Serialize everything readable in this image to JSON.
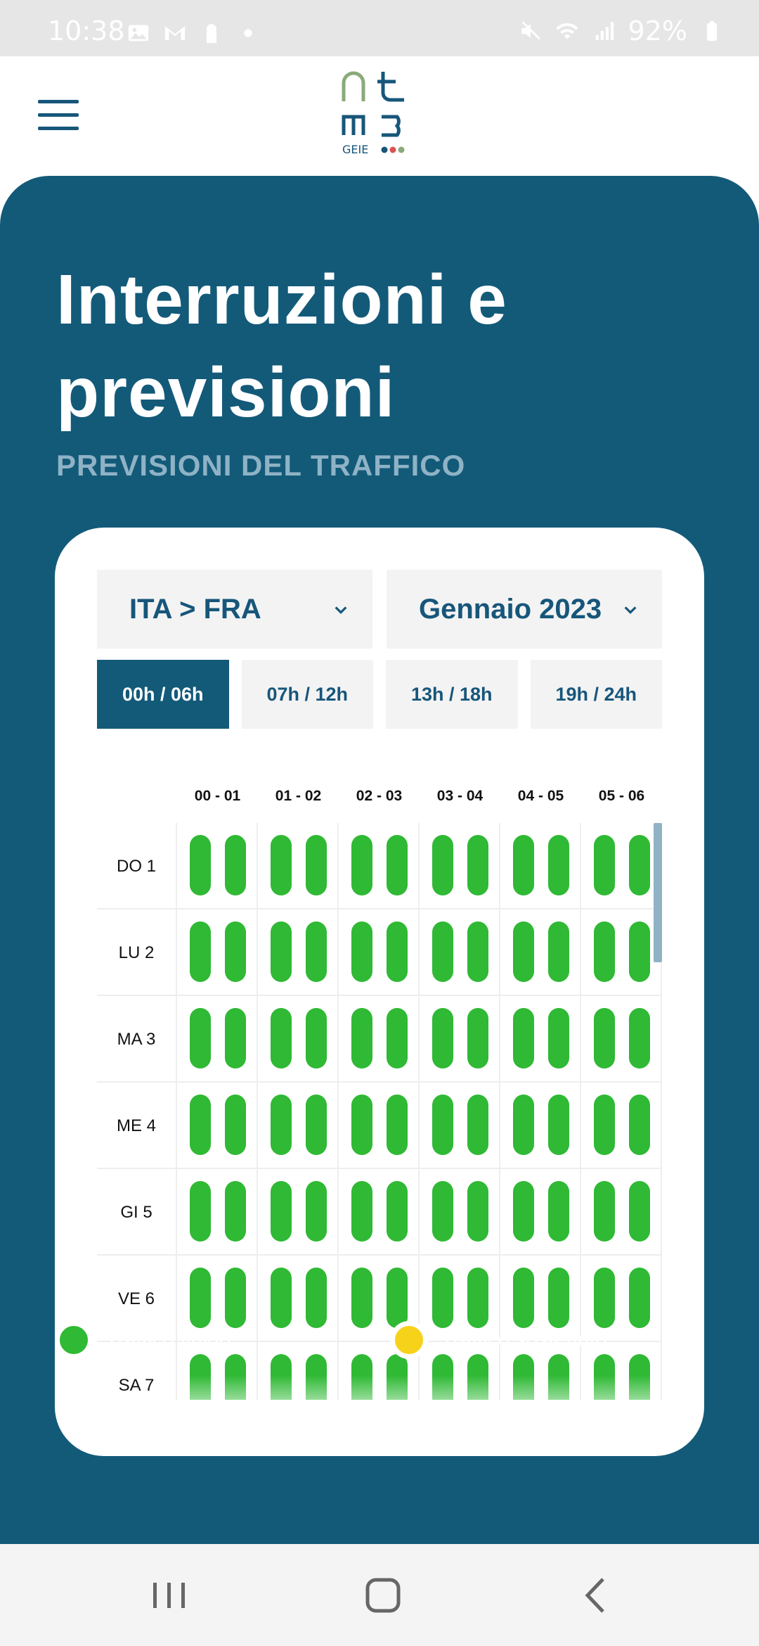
{
  "status_bar": {
    "time": "10:38",
    "battery": "92%",
    "left_icons": [
      "gallery-icon",
      "gmail-icon",
      "keyhole-icon",
      "dot-icon"
    ],
    "right_icons": [
      "mute-icon",
      "wifi-icon",
      "signal-icon",
      "battery-icon"
    ]
  },
  "header": {
    "logo_text": "GEIE",
    "menu_icon": "hamburger-icon"
  },
  "hero": {
    "title_line1": "Interruzioni e",
    "title_line2": "previsioni",
    "subtitle": "PREVISIONI DEL TRAFFICO"
  },
  "filters": {
    "route": "ITA > FRA",
    "month": "Gennaio 2023",
    "dropdown_icon": "chevron-down-icon"
  },
  "tabs": [
    {
      "label": "00h / 06h",
      "active": true
    },
    {
      "label": "07h / 12h",
      "active": false
    },
    {
      "label": "13h / 18h",
      "active": false
    },
    {
      "label": "19h / 24h",
      "active": false
    }
  ],
  "grid": {
    "columns": [
      "00 - 01",
      "01 - 02",
      "02 - 03",
      "03 - 04",
      "04 - 05",
      "05 - 06"
    ],
    "rows": [
      "DO 1",
      "LU 2",
      "MA 3",
      "ME 4",
      "GI 5",
      "VE 6",
      "SA 7"
    ],
    "status_by_row": [
      [
        "fluido",
        "fluido",
        "fluido",
        "fluido",
        "fluido",
        "fluido",
        "fluido",
        "fluido",
        "fluido",
        "fluido",
        "fluido",
        "fluido"
      ],
      [
        "fluido",
        "fluido",
        "fluido",
        "fluido",
        "fluido",
        "fluido",
        "fluido",
        "fluido",
        "fluido",
        "fluido",
        "fluido",
        "fluido"
      ],
      [
        "fluido",
        "fluido",
        "fluido",
        "fluido",
        "fluido",
        "fluido",
        "fluido",
        "fluido",
        "fluido",
        "fluido",
        "fluido",
        "fluido"
      ],
      [
        "fluido",
        "fluido",
        "fluido",
        "fluido",
        "fluido",
        "fluido",
        "fluido",
        "fluido",
        "fluido",
        "fluido",
        "fluido",
        "fluido"
      ],
      [
        "fluido",
        "fluido",
        "fluido",
        "fluido",
        "fluido",
        "fluido",
        "fluido",
        "fluido",
        "fluido",
        "fluido",
        "fluido",
        "fluido"
      ],
      [
        "fluido",
        "fluido",
        "fluido",
        "fluido",
        "fluido",
        "fluido",
        "fluido",
        "fluido",
        "fluido",
        "fluido",
        "fluido",
        "fluido"
      ],
      [
        "fluido",
        "fluido",
        "fluido",
        "fluido",
        "fluido",
        "fluido",
        "fluido",
        "fluido",
        "fluido",
        "fluido",
        "fluido",
        "fluido"
      ]
    ]
  },
  "legend": [
    {
      "label": "Traffico fluido",
      "color": "#2fb934"
    },
    {
      "label": "Traffico sostenuto",
      "color": "#f7d21a"
    }
  ],
  "colors": {
    "brand": "#135a79",
    "fluido": "#2fb934",
    "sostenuto": "#f7d21a"
  },
  "nav_bar": {
    "icons": [
      "recent-apps-icon",
      "home-icon",
      "back-icon"
    ]
  }
}
